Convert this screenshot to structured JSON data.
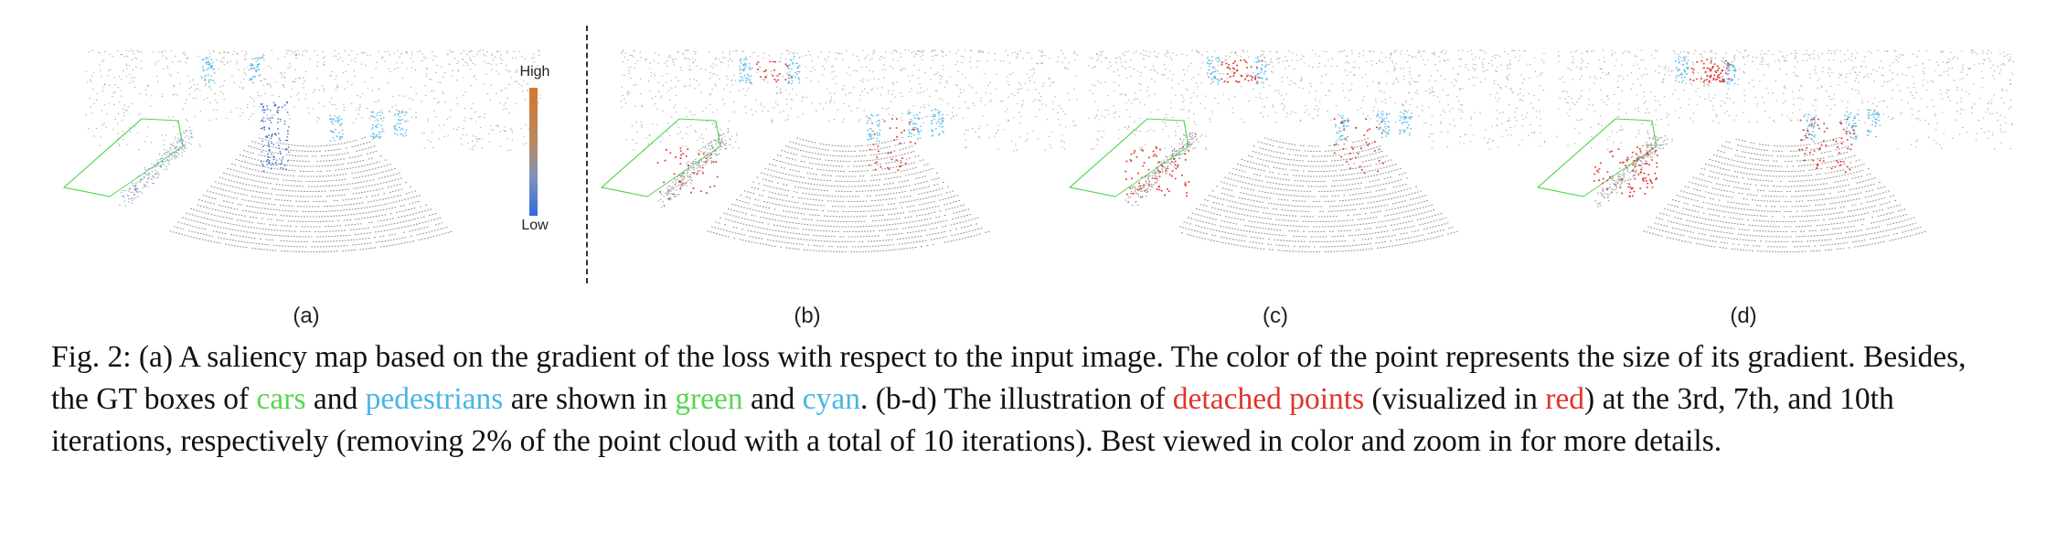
{
  "colorbar": {
    "high": "High",
    "low": "Low"
  },
  "panels": [
    {
      "label": "(a)"
    },
    {
      "label": "(b)"
    },
    {
      "label": "(c)"
    },
    {
      "label": "(d)"
    }
  ],
  "colors": {
    "cars": "#56d652",
    "pedestrians": "#49b5e6",
    "detached": "#e0352b",
    "points": "#9a9a9a",
    "gradient_high": "#d3772e",
    "gradient_low": "#2f6bd8"
  },
  "caption": {
    "prefix": "Fig. 2: (a) A saliency map based on the gradient of the loss with respect to the input image. The color of the point represents the size of its gradient. Besides, the GT boxes of ",
    "cars": "cars",
    "and1": " and ",
    "pedestrians": "pedestrians",
    "are_shown_in": " are shown in ",
    "green": "green",
    "and2": " and ",
    "cyan": "cyan",
    "b_d": ". (b-d) The illustration of ",
    "detached_points": "detached points",
    "visualized_in": " (visualized in ",
    "red": "red",
    "suffix": ") at the 3rd, 7th, and 10th iterations, respectively (removing 2% of the point cloud with a total of 10 iterations). Best viewed in color and zoom in for more details."
  }
}
